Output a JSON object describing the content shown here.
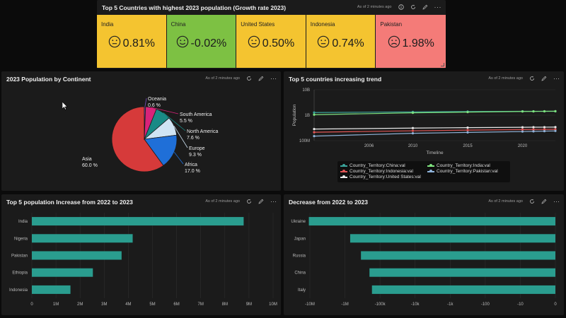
{
  "common": {
    "updated": "As of 2 minutes ago"
  },
  "kpi": {
    "title": "Top 5 Countries with highest 2023 population (Growth rate 2023)",
    "tiles": [
      {
        "name": "India",
        "value": "0.81%",
        "color": "#f4c430",
        "mood": "neutral"
      },
      {
        "name": "China",
        "value": "-0.02%",
        "color": "#7dc143",
        "mood": "happy"
      },
      {
        "name": "United States",
        "value": "0.50%",
        "color": "#f4c430",
        "mood": "neutral"
      },
      {
        "name": "Indonesia",
        "value": "0.74%",
        "color": "#f4c430",
        "mood": "neutral"
      },
      {
        "name": "Pakistan",
        "value": "1.98%",
        "color": "#f47b78",
        "mood": "sad"
      }
    ]
  },
  "pie_panel": {
    "title": "2023 Population by Continent"
  },
  "trend_panel": {
    "title": "Top 5 countries increasing trend",
    "ylabel": "Population",
    "xlabel": "Timeline"
  },
  "increase_panel": {
    "title": "Top 5 population Increase from 2022 to 2023"
  },
  "decrease_panel": {
    "title": "Decrease from 2022 to 2023"
  },
  "chart_data": [
    {
      "type": "pie",
      "title": "2023 Population by Continent",
      "slices": [
        {
          "label": "Asia",
          "pct": "60.0 %",
          "value": 60.0,
          "color": "#d63a3a"
        },
        {
          "label": "Oceania",
          "pct": "0.6 %",
          "value": 0.6,
          "color": "#7a4fbf"
        },
        {
          "label": "South America",
          "pct": "5.5 %",
          "value": 5.5,
          "color": "#d8237a"
        },
        {
          "label": "North America",
          "pct": "7.6 %",
          "value": 7.6,
          "color": "#1a8a86"
        },
        {
          "label": "Europe",
          "pct": "9.3 %",
          "value": 9.3,
          "color": "#cfe4f4"
        },
        {
          "label": "Africa",
          "pct": "17.0 %",
          "value": 17.0,
          "color": "#1f6fd8"
        }
      ]
    },
    {
      "type": "line",
      "title": "Top 5 countries increasing trend",
      "xlabel": "Timeline",
      "ylabel": "Population",
      "y_scale": "log",
      "y_ticks": [
        "10B",
        "1B",
        "100M"
      ],
      "x_ticks": [
        "2006",
        "2010",
        "2015",
        "2020"
      ],
      "xlim": [
        2001,
        2023
      ],
      "ylim_log10": [
        8,
        10
      ],
      "series": [
        {
          "name": "Country_Territory:China:val",
          "color": "#3aa39a",
          "x": [
            2001,
            2010,
            2015,
            2020,
            2021,
            2022,
            2023
          ],
          "y": [
            1270000000,
            1350000000,
            1390000000,
            1420000000,
            1425000000,
            1425000000,
            1425000000
          ]
        },
        {
          "name": "Country_Territory:India:val",
          "color": "#7fe37f",
          "x": [
            2001,
            2010,
            2015,
            2020,
            2021,
            2022,
            2023
          ],
          "y": [
            1050000000,
            1240000000,
            1320000000,
            1400000000,
            1410000000,
            1420000000,
            1430000000
          ]
        },
        {
          "name": "Country_Territory:Indonesia:val",
          "color": "#e05555",
          "x": [
            2001,
            2010,
            2015,
            2020,
            2021,
            2022,
            2023
          ],
          "y": [
            214000000,
            244000000,
            259000000,
            272000000,
            274000000,
            276000000,
            278000000
          ]
        },
        {
          "name": "Country_Territory:Pakistan:val",
          "color": "#8fb3d9",
          "x": [
            2001,
            2010,
            2015,
            2020,
            2021,
            2022,
            2023
          ],
          "y": [
            150000000,
            194000000,
            210000000,
            227000000,
            231000000,
            236000000,
            240000000
          ]
        },
        {
          "name": "Country_Territory:United States:val",
          "color": "#e8e8e8",
          "x": [
            2001,
            2010,
            2015,
            2020,
            2021,
            2022,
            2023
          ],
          "y": [
            285000000,
            311000000,
            324000000,
            335000000,
            337000000,
            338000000,
            340000000
          ]
        }
      ]
    },
    {
      "type": "bar",
      "orientation": "horizontal",
      "title": "Top 5 population Increase from 2022 to 2023",
      "categories": [
        "India",
        "Nigeria",
        "Pakistan",
        "Ethiopia",
        "Indonesia"
      ],
      "values": [
        8780000,
        4180000,
        3720000,
        2530000,
        1600000
      ],
      "x_ticks": [
        "0",
        "1M",
        "2M",
        "3M",
        "4M",
        "5M",
        "6M",
        "7M",
        "8M",
        "9M",
        "10M"
      ],
      "xlim": [
        0,
        10000000
      ],
      "color": "#2a9d8f"
    },
    {
      "type": "bar",
      "orientation": "horizontal",
      "title": "Decrease from 2022 to 2023",
      "categories": [
        "Ukraine",
        "Japan",
        "Russia",
        "China",
        "Italy"
      ],
      "values": [
        -10700000,
        -710000,
        -350000,
        -200000,
        -170000
      ],
      "x_scale": "symlog",
      "x_ticks": [
        "-10M",
        "-1M",
        "-100k",
        "-10k",
        "-1k",
        "-100",
        "-10",
        "0"
      ],
      "color": "#2a9d8f"
    }
  ]
}
